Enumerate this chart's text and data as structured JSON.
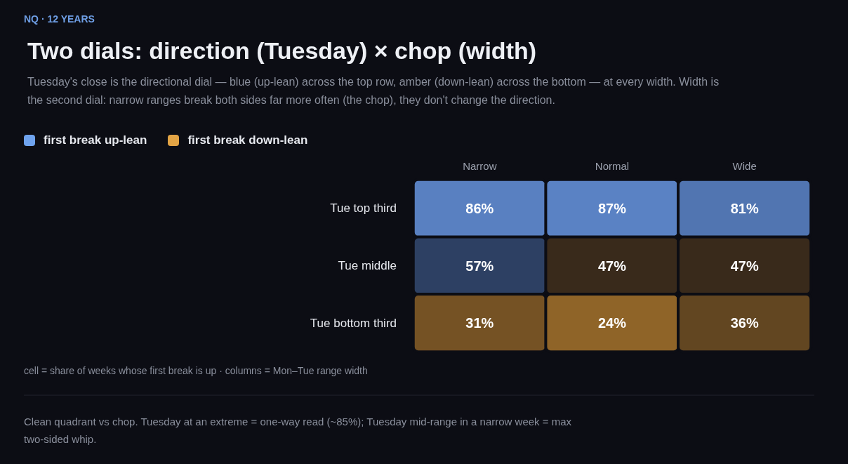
{
  "chart_data": {
    "type": "heatmap",
    "title": "Two dials: direction (Tuesday) × chop (width)",
    "subtitle": "Tuesday's close is the directional dial — blue (up-lean) across the top row, amber (down-lean) across the bottom — at every width. Width is the second dial: narrow ranges break both sides far more often (the chop), they don't change the direction.",
    "categories": [
      "Narrow",
      "Normal",
      "Wide"
    ],
    "y_categories": [
      "Tue top third",
      "Tue middle",
      "Tue bottom third"
    ],
    "cells": [
      [
        86,
        87,
        81
      ],
      [
        57,
        47,
        47
      ],
      [
        31,
        24,
        36
      ]
    ],
    "cell_labels": [
      [
        "86%",
        "87%",
        "81%"
      ],
      [
        "57%",
        "47%",
        "47%"
      ],
      [
        "31%",
        "24%",
        "36%"
      ]
    ],
    "colors": [
      "#6fa3ee",
      "#e3a445"
    ],
    "annotations": [
      "NQ · 12 YEARS",
      "cell = share of weeks whose first break is up · columns = Mon–Tue range width",
      "Clean quadrant vs chop. Tuesday at an extreme = one-way read (~85%); Tuesday mid-range in a narrow week = max two-sided whip.",
      "first break up-lean",
      "first break down-lean"
    ]
  }
}
